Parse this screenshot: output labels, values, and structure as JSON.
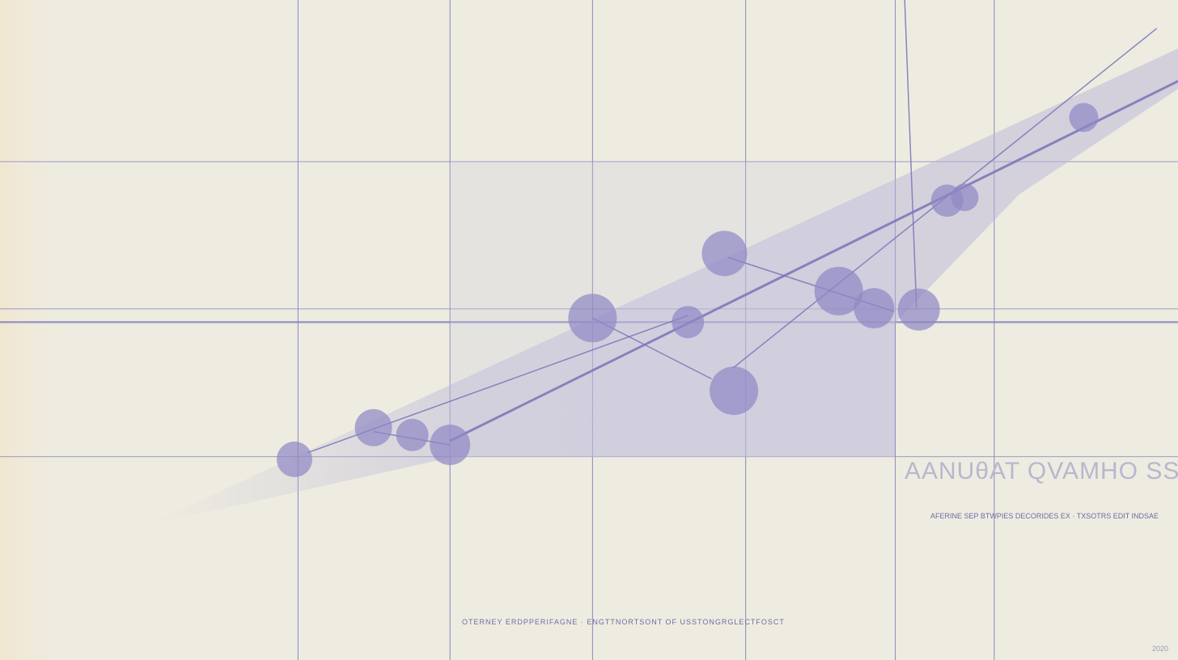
{
  "chart_data": {
    "type": "scatter",
    "title": "AANUθAT QVAMHO SS",
    "subtitle": "AFERINE SEP BTWPIES DECORIDES EX · TXSOTRS EDIT INDSAE",
    "footer": "OTERNEY ERDPPERIFAGNE · ENGTTNORTSONT OF USSTONGRGLECTFOSCT",
    "corner_note": "2020",
    "xlim": [
      0,
      100
    ],
    "ylim": [
      0,
      100
    ],
    "grid": true,
    "colors": {
      "points": "#8e88c4",
      "lines": "#7a74b8",
      "band": "#b8b4d8",
      "background": "#eeece0"
    },
    "points": [
      {
        "x": 25.0,
        "y": 30.4,
        "size": 22
      },
      {
        "x": 31.7,
        "y": 35.2,
        "size": 23
      },
      {
        "x": 35.0,
        "y": 34.1,
        "size": 20
      },
      {
        "x": 38.2,
        "y": 32.6,
        "size": 25
      },
      {
        "x": 50.3,
        "y": 51.8,
        "size": 30
      },
      {
        "x": 58.4,
        "y": 51.2,
        "size": 20
      },
      {
        "x": 61.5,
        "y": 61.6,
        "size": 28
      },
      {
        "x": 62.3,
        "y": 40.8,
        "size": 30
      },
      {
        "x": 71.2,
        "y": 55.9,
        "size": 30
      },
      {
        "x": 74.2,
        "y": 53.3,
        "size": 25
      },
      {
        "x": 78.0,
        "y": 53.1,
        "size": 26
      },
      {
        "x": 80.4,
        "y": 69.6,
        "size": 20
      },
      {
        "x": 81.9,
        "y": 70.1,
        "size": 17
      },
      {
        "x": 92.0,
        "y": 82.2,
        "size": 18
      }
    ],
    "trend_lines": [
      [
        [
          38.2,
          33.2
        ],
        [
          100,
          87.7
        ]
      ],
      [
        [
          62.2,
          44.2
        ],
        [
          98.2,
          95.7
        ]
      ],
      [
        [
          61.8,
          61.0
        ],
        [
          75.9,
          52.8
        ]
      ],
      [
        [
          50.3,
          51.8
        ],
        [
          60.4,
          42.6
        ]
      ],
      [
        [
          76.8,
          100
        ],
        [
          77.8,
          53.4
        ]
      ],
      [
        [
          26.1,
          31.4
        ],
        [
          58.4,
          52.2
        ]
      ],
      [
        [
          31.7,
          34.6
        ],
        [
          38.2,
          32.6
        ]
      ]
    ],
    "gridlines_x": [
      25.3,
      38.2,
      50.3,
      63.3,
      76.0,
      84.4
    ],
    "gridlines_y": [
      75.5,
      53.2,
      51.2,
      30.8
    ],
    "highlight_line_y": 51.2
  }
}
